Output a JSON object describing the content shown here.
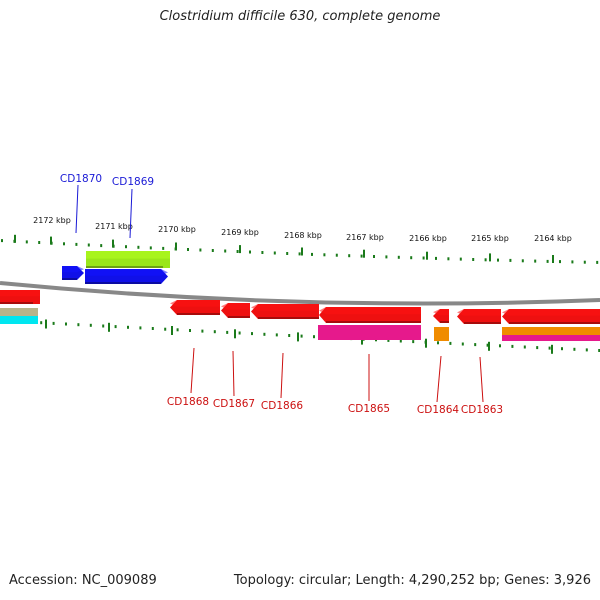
{
  "title": "Clostridium difficile 630, complete genome",
  "footer": {
    "accession": "Accession: NC_009089",
    "summary": "Topology: circular; Length: 4,290,252 bp; Genes: 3,926"
  },
  "colors": {
    "backbone": "#888888",
    "tick": "#1a7a1a",
    "label_top": "#1a1ad6",
    "label_bottom": "#cc1010",
    "forward_cds": "#1010e8",
    "reverse_cds": "#ee1010",
    "rna": "#99e61a",
    "other_a": "#e6198c",
    "other_b": "#f08c00",
    "other_c": "#00e6f0"
  },
  "ruler_labels": [
    "2172 kbp",
    "2171 kbp",
    "2170 kbp",
    "2169 kbp",
    "2168 kbp",
    "2167 kbp",
    "2166 kbp",
    "2165 kbp",
    "2164 kbp"
  ],
  "gene_labels_top": [
    "CD1870",
    "CD1869"
  ],
  "gene_labels_bottom": [
    "CD1868",
    "CD1867",
    "CD1866",
    "CD1865",
    "CD1864",
    "CD1863"
  ]
}
